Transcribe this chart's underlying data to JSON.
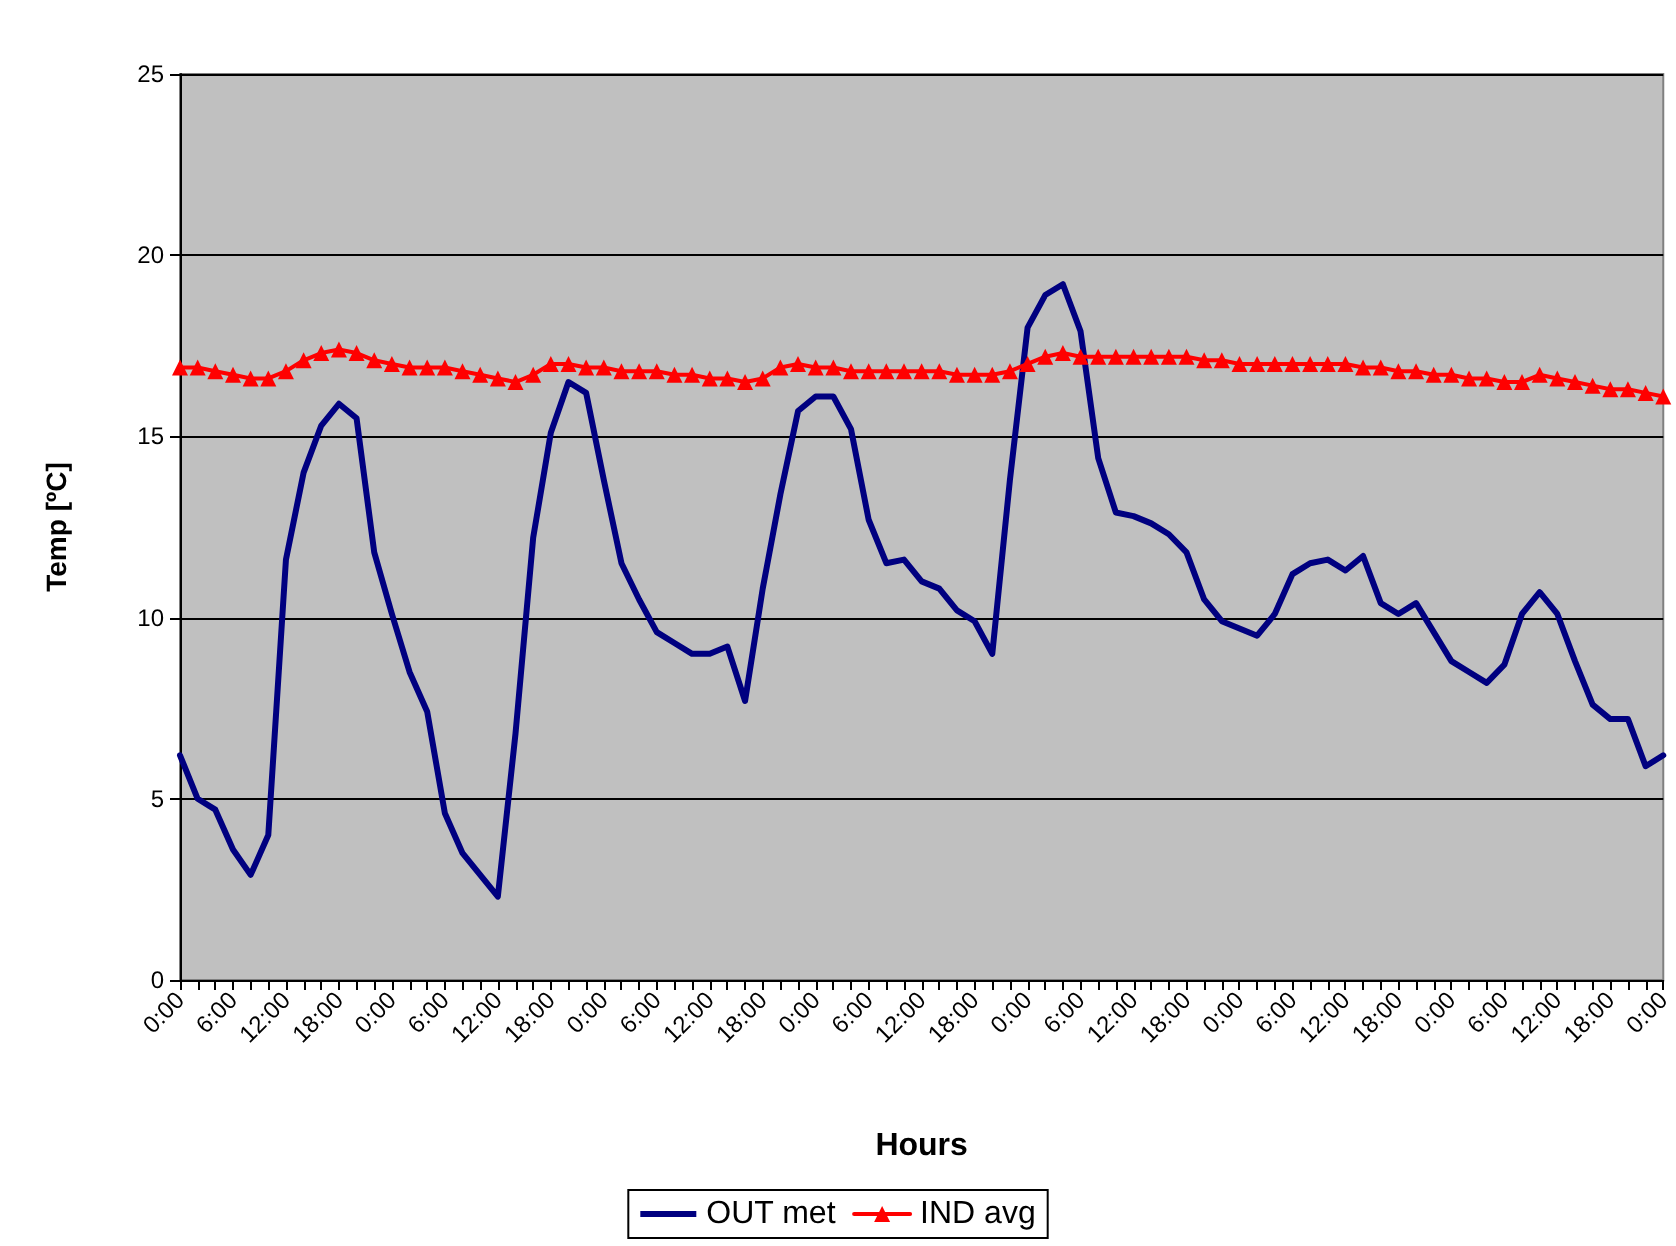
{
  "chart_data": {
    "type": "line",
    "xlabel": "Hours",
    "ylabel": "Temp [ºC]",
    "categories": [
      "0:00",
      null,
      null,
      "6:00",
      null,
      null,
      "12:00",
      null,
      null,
      "18:00",
      null,
      null,
      "0:00",
      null,
      null,
      "6:00",
      null,
      null,
      "12:00",
      null,
      null,
      "18:00",
      null,
      null,
      "0:00",
      null,
      null,
      "6:00",
      null,
      null,
      "12:00",
      null,
      null,
      "18:00",
      null,
      null,
      "0:00",
      null,
      null,
      "6:00",
      null,
      null,
      "12:00",
      null,
      null,
      "18:00",
      null,
      null,
      "0:00",
      null,
      null,
      "6:00",
      null,
      null,
      "12:00",
      null,
      null,
      "18:00",
      null,
      null,
      "0:00",
      null,
      null,
      "6:00",
      null,
      null,
      "12:00",
      null,
      null,
      "18:00",
      null,
      null,
      "0:00",
      null,
      null,
      "6:00",
      null,
      null,
      "12:00",
      null,
      null,
      "18:00",
      null,
      null,
      "0:00"
    ],
    "series": [
      {
        "name": "OUT met",
        "color": "#000080",
        "marker": "none",
        "values": [
          6.2,
          5.0,
          4.7,
          3.6,
          2.9,
          4.0,
          11.6,
          14.0,
          15.3,
          15.9,
          15.5,
          11.8,
          10.1,
          8.5,
          7.4,
          4.6,
          3.5,
          2.9,
          2.3,
          6.8,
          12.2,
          15.1,
          16.5,
          16.2,
          13.8,
          11.5,
          10.5,
          9.6,
          9.3,
          9.0,
          9.0,
          9.2,
          7.7,
          10.8,
          13.4,
          15.7,
          16.1,
          16.1,
          15.2,
          12.7,
          11.5,
          11.6,
          11.0,
          10.8,
          10.2,
          9.9,
          9.0,
          13.8,
          18.0,
          18.9,
          19.2,
          17.9,
          14.4,
          12.9,
          12.8,
          12.6,
          12.3,
          11.8,
          10.5,
          9.9,
          9.7,
          9.5,
          10.1,
          11.2,
          11.5,
          11.6,
          11.3,
          11.7,
          10.4,
          10.1,
          10.4,
          9.6,
          8.8,
          8.5,
          8.2,
          8.7,
          10.1,
          10.7,
          10.1,
          8.8,
          7.6,
          7.2,
          7.2,
          5.9,
          6.2
        ]
      },
      {
        "name": "IND avg",
        "color": "#ff0000",
        "marker": "triangle",
        "values": [
          16.9,
          16.9,
          16.8,
          16.7,
          16.6,
          16.6,
          16.8,
          17.1,
          17.3,
          17.4,
          17.3,
          17.1,
          17.0,
          16.9,
          16.9,
          16.9,
          16.8,
          16.7,
          16.6,
          16.5,
          16.7,
          17.0,
          17.0,
          16.9,
          16.9,
          16.8,
          16.8,
          16.8,
          16.7,
          16.7,
          16.6,
          16.6,
          16.5,
          16.6,
          16.9,
          17.0,
          16.9,
          16.9,
          16.8,
          16.8,
          16.8,
          16.8,
          16.8,
          16.8,
          16.7,
          16.7,
          16.7,
          16.8,
          17.0,
          17.2,
          17.3,
          17.2,
          17.2,
          17.2,
          17.2,
          17.2,
          17.2,
          17.2,
          17.1,
          17.1,
          17.0,
          17.0,
          17.0,
          17.0,
          17.0,
          17.0,
          17.0,
          16.9,
          16.9,
          16.8,
          16.8,
          16.7,
          16.7,
          16.6,
          16.6,
          16.5,
          16.5,
          16.7,
          16.6,
          16.5,
          16.4,
          16.3,
          16.3,
          16.2,
          16.1
        ]
      }
    ],
    "ylim": [
      0,
      25
    ],
    "yticks": [
      0,
      5,
      10,
      15,
      20,
      25
    ],
    "grid": "y",
    "legend": "bottom",
    "line_style": "solid"
  }
}
